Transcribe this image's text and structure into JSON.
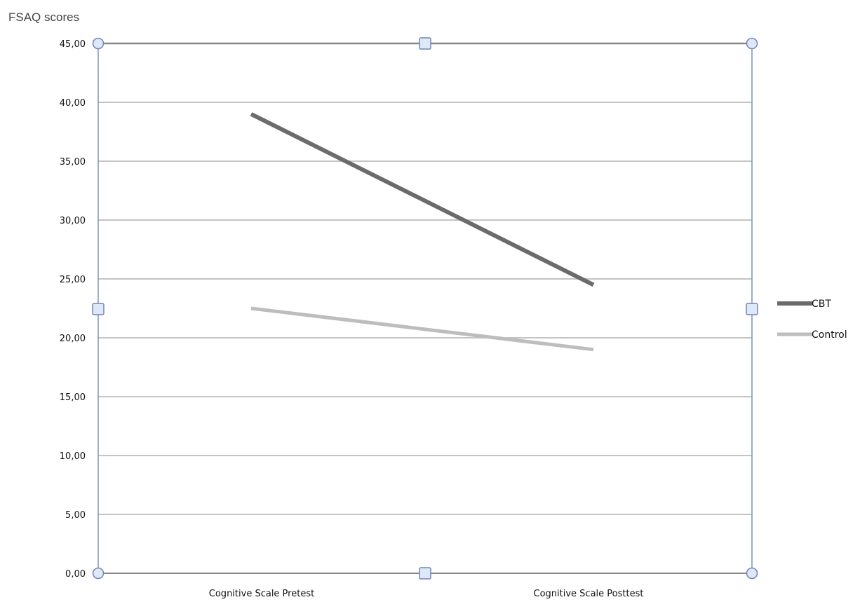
{
  "chart_data": {
    "type": "line",
    "ylabel": "FSAQ scores",
    "categories": [
      "Cognitive Scale Pretest",
      "Cognitive Scale Posttest"
    ],
    "y_ticks": [
      "0,00",
      "5,00",
      "10,00",
      "15,00",
      "20,00",
      "25,00",
      "30,00",
      "35,00",
      "40,00",
      "45,00"
    ],
    "ylim": [
      0,
      45
    ],
    "grid": true,
    "legend_position": "right",
    "series": [
      {
        "name": "CBT",
        "values": [
          39.0,
          24.5
        ],
        "color": "#6b6b6b"
      },
      {
        "name": "Control",
        "values": [
          22.5,
          19.0
        ],
        "color": "#bdbdbd"
      }
    ],
    "selection_handles": true,
    "frame_color": "#7f93b5",
    "handle_fill": "#dfe8f7",
    "handle_stroke": "#6f86b8"
  }
}
